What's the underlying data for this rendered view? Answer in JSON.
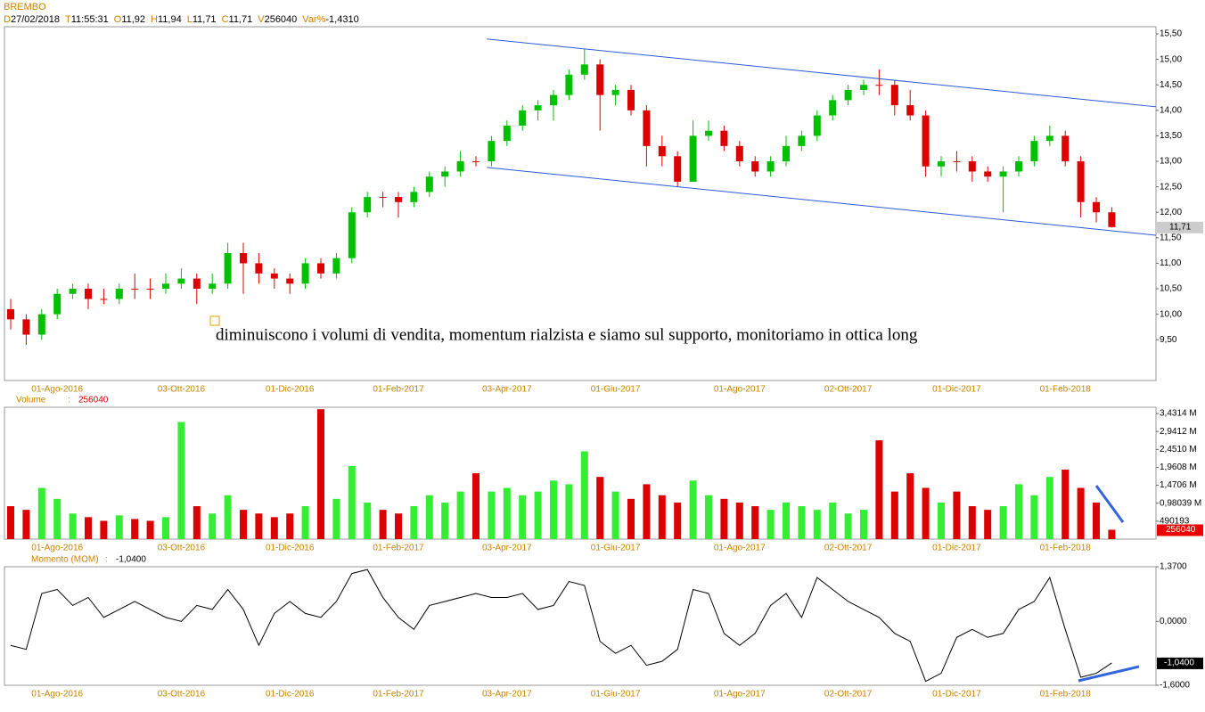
{
  "header": {
    "symbol": "BREMBO",
    "fields": [
      {
        "key": "D",
        "value": "27/02/2018"
      },
      {
        "key": "T",
        "value": "11:55:31"
      },
      {
        "key": "O",
        "value": "11,92"
      },
      {
        "key": "H",
        "value": "11,94"
      },
      {
        "key": "L",
        "value": "11,71"
      },
      {
        "key": "C",
        "value": "11,71"
      },
      {
        "key": "V",
        "value": "256040"
      },
      {
        "key": "Var%",
        "value": "-1,4310"
      }
    ]
  },
  "chart_data": [
    {
      "type": "candlestick",
      "categories": [
        null,
        null,
        null,
        "01-Ago-2016",
        null,
        null,
        null,
        null,
        null,
        null,
        null,
        "03-Ott-2016",
        null,
        null,
        null,
        null,
        null,
        null,
        "01-Dic-2016",
        null,
        null,
        null,
        null,
        null,
        null,
        "01-Feb-2017",
        null,
        null,
        null,
        null,
        null,
        null,
        "03-Apr-2017",
        null,
        null,
        null,
        null,
        null,
        null,
        "01-Giu-2017",
        null,
        null,
        null,
        null,
        null,
        null,
        null,
        "01-Ago-2017",
        null,
        null,
        null,
        null,
        null,
        null,
        "02-Ott-2017",
        null,
        null,
        null,
        null,
        null,
        null,
        "01-Dic-2017",
        null,
        null,
        null,
        null,
        null,
        null,
        "01-Feb-2018",
        null,
        null,
        null
      ],
      "open": [
        10.1,
        9.9,
        9.6,
        10.0,
        10.4,
        10.5,
        10.3,
        10.3,
        10.5,
        10.5,
        10.5,
        10.6,
        10.7,
        10.5,
        10.6,
        11.2,
        11.0,
        10.8,
        10.7,
        10.6,
        11.0,
        10.8,
        11.1,
        12.0,
        12.3,
        12.3,
        12.2,
        12.4,
        12.7,
        12.8,
        13.0,
        13.0,
        13.4,
        13.7,
        14.0,
        14.1,
        14.3,
        14.7,
        14.9,
        14.3,
        14.4,
        14.0,
        13.3,
        13.1,
        12.6,
        13.5,
        13.6,
        13.3,
        13.0,
        12.8,
        13.0,
        13.3,
        13.5,
        13.9,
        14.2,
        14.4,
        14.5,
        14.5,
        14.1,
        13.9,
        12.9,
        13.0,
        13.0,
        12.8,
        12.7,
        12.8,
        13.0,
        13.4,
        13.5,
        13.0,
        12.2,
        12.0
      ],
      "high": [
        10.3,
        10.0,
        10.1,
        10.5,
        10.6,
        10.6,
        10.5,
        10.6,
        10.8,
        10.7,
        10.8,
        10.9,
        10.8,
        10.8,
        11.4,
        11.4,
        11.2,
        10.9,
        10.8,
        11.1,
        11.1,
        11.2,
        12.1,
        12.4,
        12.4,
        12.4,
        12.5,
        12.8,
        12.9,
        13.2,
        13.1,
        13.5,
        13.8,
        14.1,
        14.2,
        14.4,
        14.8,
        15.2,
        15.0,
        14.5,
        14.5,
        14.1,
        13.5,
        13.2,
        13.8,
        13.8,
        13.7,
        13.4,
        13.1,
        13.1,
        13.5,
        13.6,
        14.0,
        14.3,
        14.5,
        14.6,
        14.8,
        14.6,
        14.4,
        14.0,
        13.1,
        13.2,
        13.1,
        12.9,
        12.9,
        13.1,
        13.5,
        13.7,
        13.6,
        13.1,
        12.3,
        12.1
      ],
      "low": [
        9.7,
        9.4,
        9.5,
        9.9,
        10.3,
        10.1,
        10.2,
        10.2,
        10.3,
        10.3,
        10.4,
        10.5,
        10.2,
        10.4,
        10.5,
        10.4,
        10.6,
        10.5,
        10.4,
        10.5,
        10.7,
        10.7,
        11.0,
        11.9,
        12.1,
        11.9,
        12.1,
        12.3,
        12.5,
        12.7,
        12.9,
        12.9,
        13.3,
        13.6,
        13.8,
        13.8,
        14.2,
        14.6,
        13.6,
        14.1,
        13.9,
        12.9,
        12.9,
        12.5,
        12.6,
        13.4,
        13.2,
        12.9,
        12.7,
        12.7,
        12.9,
        13.2,
        13.4,
        13.8,
        14.1,
        14.3,
        14.3,
        13.9,
        13.8,
        12.7,
        12.7,
        12.8,
        12.6,
        12.6,
        12.0,
        12.7,
        12.9,
        13.3,
        12.9,
        11.9,
        11.8,
        11.7
      ],
      "close": [
        9.9,
        9.6,
        10.0,
        10.4,
        10.5,
        10.3,
        10.3,
        10.5,
        10.5,
        10.5,
        10.6,
        10.7,
        10.5,
        10.6,
        11.2,
        11.0,
        10.8,
        10.7,
        10.6,
        11.0,
        10.8,
        11.1,
        12.0,
        12.3,
        12.3,
        12.2,
        12.4,
        12.7,
        12.8,
        13.0,
        13.0,
        13.4,
        13.7,
        14.0,
        14.1,
        14.3,
        14.7,
        14.9,
        14.3,
        14.4,
        14.0,
        13.3,
        13.1,
        12.6,
        13.5,
        13.6,
        13.3,
        13.0,
        12.8,
        13.0,
        13.3,
        13.5,
        13.9,
        14.2,
        14.4,
        14.5,
        14.5,
        14.1,
        13.9,
        12.9,
        13.0,
        13.0,
        12.8,
        12.7,
        12.8,
        13.0,
        13.4,
        13.5,
        13.0,
        12.2,
        12.0,
        11.71
      ],
      "up_color": "#00c000",
      "down_color": "#dd0000",
      "ylim": [
        8.7,
        15.64
      ],
      "yticks": [
        {
          "value": 15.5,
          "label": "15,50"
        },
        {
          "value": 15,
          "label": "15,00"
        },
        {
          "value": 14.5,
          "label": "14,50"
        },
        {
          "value": 14,
          "label": "14,00"
        },
        {
          "value": 13.5,
          "label": "13,50"
        },
        {
          "value": 13,
          "label": "13,00"
        },
        {
          "value": 12.5,
          "label": "12,50"
        },
        {
          "value": 12,
          "label": "12,00"
        },
        {
          "value": 11.5,
          "label": "11,50"
        },
        {
          "value": 11,
          "label": "11,00"
        },
        {
          "value": 10.5,
          "label": "10,50"
        },
        {
          "value": 10,
          "label": "10,00"
        },
        {
          "value": 9.5,
          "label": "9,50"
        }
      ],
      "last": {
        "value": 11.71,
        "label": "11,71"
      },
      "trendlines": [
        {
          "x": [
            30.7,
            73.85
          ],
          "y": [
            15.4,
            14.07
          ]
        },
        {
          "x": [
            30.7,
            73.85
          ],
          "y": [
            12.88,
            11.55
          ]
        }
      ],
      "trendline_color": "#2a5bd7",
      "annotation": "diminuiscono i volumi di vendita, momentum rialzista e siamo sul supporto, monitoriamo in ottica long"
    },
    {
      "type": "bar",
      "title": "Volume",
      "label_separator": ":",
      "values": [
        900000,
        800000,
        1400000,
        1100000,
        700000,
        600000,
        500000,
        650000,
        550000,
        500000,
        600000,
        3200000,
        900000,
        700000,
        1200000,
        800000,
        700000,
        600000,
        700000,
        900000,
        3550000,
        1100000,
        2000000,
        1000000,
        800000,
        700000,
        900000,
        1200000,
        1000000,
        1300000,
        1800000,
        1300000,
        1400000,
        1200000,
        1300000,
        1600000,
        1500000,
        2400000,
        1700000,
        1300000,
        1100000,
        1500000,
        1200000,
        1000000,
        1600000,
        1200000,
        1100000,
        1000000,
        900000,
        800000,
        1000000,
        900000,
        800000,
        1000000,
        700000,
        800000,
        2700000,
        1300000,
        1800000,
        1400000,
        1000000,
        1300000,
        900000,
        800000,
        900000,
        1500000,
        1200000,
        1700000,
        1900000,
        1400000,
        1000000,
        256040
      ],
      "up_color": "#33ee33",
      "down_color": "#dd0000",
      "ylim": [
        0,
        3604000
      ],
      "yticks": [
        {
          "value": 3431400,
          "label": "3,4314 M"
        },
        {
          "value": 2941200,
          "label": "2,9412 M"
        },
        {
          "value": 2451000,
          "label": "2,4510 M"
        },
        {
          "value": 1960800,
          "label": "1,9608 M"
        },
        {
          "value": 1470600,
          "label": "1,4706 M"
        },
        {
          "value": 980390,
          "label": "0,98039 M"
        },
        490193
      ],
      "current": 256040
    },
    {
      "type": "line",
      "title": "Momento (MOM)",
      "label_separator": ":",
      "values": [
        -0.6,
        -0.7,
        0.7,
        0.8,
        0.4,
        0.6,
        0.1,
        0.3,
        0.5,
        0.3,
        0.1,
        0.0,
        0.4,
        0.3,
        0.8,
        0.3,
        -0.6,
        0.2,
        0.5,
        0.2,
        0.1,
        0.5,
        1.2,
        1.3,
        0.6,
        0.1,
        -0.2,
        0.4,
        0.5,
        0.6,
        0.7,
        0.6,
        0.6,
        0.7,
        0.3,
        0.4,
        1.0,
        0.9,
        -0.5,
        -0.8,
        -0.6,
        -1.1,
        -1.0,
        -0.7,
        0.8,
        0.7,
        -0.3,
        -0.6,
        -0.3,
        0.4,
        0.7,
        0.1,
        1.1,
        0.8,
        0.5,
        0.3,
        0.1,
        -0.3,
        -0.5,
        -1.5,
        -1.3,
        -0.4,
        -0.2,
        -0.4,
        -0.3,
        0.3,
        0.5,
        1.1,
        -0.2,
        -1.4,
        -1.3,
        -1.04
      ],
      "color": "#000000",
      "ylim": [
        -1.6,
        1.37
      ],
      "yticks": [
        {
          "value": 1.37,
          "label": "1,3700"
        },
        {
          "value": 0,
          "label": "0,0000"
        },
        {
          "value": -1.6,
          "label": "-1,6000"
        }
      ],
      "current": {
        "value": -1.04,
        "label": "-1,0400"
      }
    }
  ]
}
